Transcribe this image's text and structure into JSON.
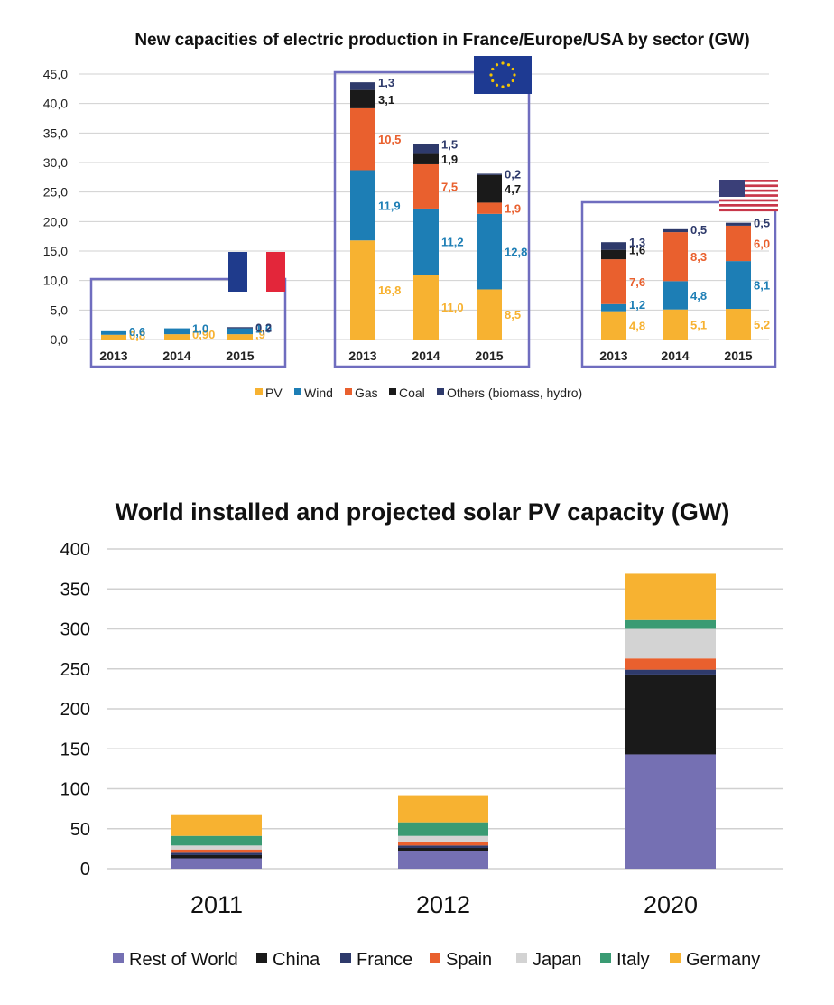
{
  "colors": {
    "pv": "#F7B231",
    "wind": "#1D7EB5",
    "gas": "#E9602E",
    "coal": "#1A1A1A",
    "others": "#2E3A6B",
    "box": "#6F6DBF",
    "grid": "#D0D0D0",
    "rest_of_world": "#7570B3",
    "china": "#1A1A1A",
    "france": "#2E3A6B",
    "spain": "#E9602E",
    "japan": "#D3D3D3",
    "italy": "#3A9B73",
    "germany": "#F7B231"
  },
  "chart_data": [
    {
      "type": "bar",
      "stacked": true,
      "title": "New capacities of electric production in France/Europe/USA by sector (GW)",
      "ylim": [
        0,
        45
      ],
      "yticks": [
        "0,0",
        "5,0",
        "10,0",
        "15,0",
        "20,0",
        "25,0",
        "30,0",
        "35,0",
        "40,0",
        "45,0"
      ],
      "legend": [
        "PV",
        "Wind",
        "Gas",
        "Coal",
        "Others (biomass, hydro)"
      ],
      "groups": [
        {
          "name": "France",
          "flag": "france-flag",
          "categories": [
            "2013",
            "2014",
            "2015"
          ],
          "series": [
            {
              "name": "PV",
              "values": [
                0.8,
                0.9,
                0.9
              ],
              "labels": [
                "0,8",
                "0,90",
                ",9"
              ]
            },
            {
              "name": "Wind",
              "values": [
                0.6,
                1.0,
                1.0
              ],
              "labels": [
                "0,6",
                "1,0",
                "1,0"
              ]
            },
            {
              "name": "Gas",
              "values": [
                0,
                0,
                0
              ],
              "labels": [
                "",
                "",
                ""
              ]
            },
            {
              "name": "Coal",
              "values": [
                0,
                0,
                0
              ],
              "labels": [
                "",
                "",
                ""
              ]
            },
            {
              "name": "Others (biomass, hydro)",
              "values": [
                0,
                0,
                0.2
              ],
              "labels": [
                "",
                "",
                "0,2"
              ]
            }
          ]
        },
        {
          "name": "Europe",
          "flag": "eu-flag",
          "categories": [
            "2013",
            "2014",
            "2015"
          ],
          "series": [
            {
              "name": "PV",
              "values": [
                16.8,
                11.0,
                8.5
              ],
              "labels": [
                "16,8",
                "11,0",
                "8,5"
              ]
            },
            {
              "name": "Wind",
              "values": [
                11.9,
                11.2,
                12.8
              ],
              "labels": [
                "11,9",
                "11,2",
                "12,8"
              ]
            },
            {
              "name": "Gas",
              "values": [
                10.5,
                7.5,
                1.9
              ],
              "labels": [
                "10,5",
                "7,5",
                "1,9"
              ]
            },
            {
              "name": "Coal",
              "values": [
                3.1,
                1.9,
                4.7
              ],
              "labels": [
                "3,1",
                "1,9",
                "4,7"
              ]
            },
            {
              "name": "Others (biomass, hydro)",
              "values": [
                1.3,
                1.5,
                0.2
              ],
              "labels": [
                "1,3",
                "1,5",
                "0,2"
              ]
            }
          ]
        },
        {
          "name": "USA",
          "flag": "usa-flag",
          "categories": [
            "2013",
            "2014",
            "2015"
          ],
          "series": [
            {
              "name": "PV",
              "values": [
                4.8,
                5.1,
                5.2
              ],
              "labels": [
                "4,8",
                "5,1",
                "5,2"
              ]
            },
            {
              "name": "Wind",
              "values": [
                1.2,
                4.8,
                8.1
              ],
              "labels": [
                "1,2",
                "4,8",
                "8,1"
              ]
            },
            {
              "name": "Gas",
              "values": [
                7.6,
                8.3,
                6.0
              ],
              "labels": [
                "7,6",
                "8,3",
                "6,0"
              ]
            },
            {
              "name": "Coal",
              "values": [
                1.6,
                0,
                0
              ],
              "labels": [
                "1,6",
                "",
                ""
              ]
            },
            {
              "name": "Others (biomass, hydro)",
              "values": [
                1.3,
                0.5,
                0.5
              ],
              "labels": [
                "1,3",
                "0,5",
                "0,5"
              ]
            }
          ]
        }
      ]
    },
    {
      "type": "bar",
      "stacked": true,
      "title": "World installed and projected solar PV capacity (GW)",
      "ylim": [
        0,
        400
      ],
      "yticks": [
        "0",
        "50",
        "100",
        "150",
        "200",
        "250",
        "300",
        "350",
        "400"
      ],
      "categories": [
        "2011",
        "2012",
        "2020"
      ],
      "series": [
        {
          "name": "Rest of World",
          "values": [
            13,
            22,
            143
          ]
        },
        {
          "name": "China",
          "values": [
            4,
            4,
            100
          ]
        },
        {
          "name": "France",
          "values": [
            3,
            3,
            6
          ]
        },
        {
          "name": "Spain",
          "values": [
            4,
            5,
            14
          ]
        },
        {
          "name": "Japan",
          "values": [
            5,
            7,
            37
          ]
        },
        {
          "name": "Italy",
          "values": [
            12,
            17,
            11
          ]
        },
        {
          "name": "Germany",
          "values": [
            26,
            34,
            58
          ]
        }
      ]
    }
  ]
}
